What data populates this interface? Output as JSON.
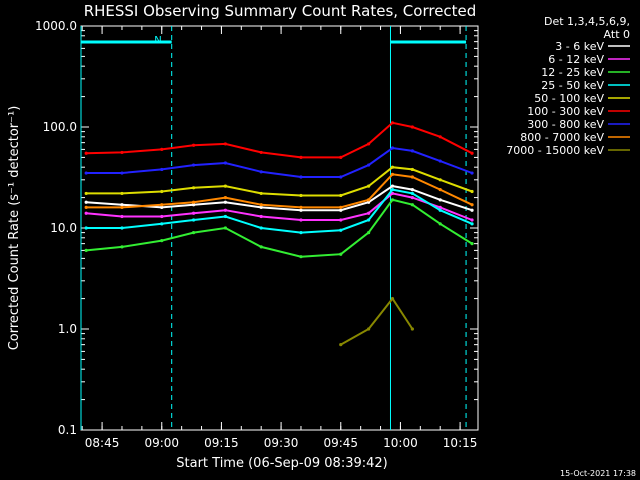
{
  "chart_data": {
    "type": "line",
    "title": "RHESSI Observing Summary Count Rates, Corrected",
    "xlabel": "Start Time (06-Sep-09 08:39:42)",
    "ylabel": "Corrected Count Rate (s⁻¹ detector⁻¹)",
    "yscale": "log",
    "ylim": [
      0.1,
      1000
    ],
    "xlim_minutes": [
      519.7,
      619.5
    ],
    "xtick_labels": [
      "08:45",
      "09:00",
      "09:15",
      "09:30",
      "09:45",
      "10:00",
      "10:15"
    ],
    "xtick_minutes": [
      525,
      540,
      555,
      570,
      585,
      600,
      615
    ],
    "ytick_labels": [
      "0.1",
      "1.0",
      "10.0",
      "100.0",
      "1000.0"
    ],
    "ytick_values": [
      0.1,
      1,
      10,
      100,
      1000
    ],
    "legend_header": [
      "Det 1,3,4,5,6,9,",
      "Att 0"
    ],
    "legend_placement": "right",
    "timestamp": "15-Oct-2021 17:38",
    "annotation_letter": "N",
    "x_minutes": [
      521,
      530,
      540,
      548,
      556,
      565,
      575,
      585,
      592,
      598,
      603,
      610,
      618
    ],
    "series": [
      {
        "name": "3 - 6 keV",
        "color": "#ffffff",
        "values": [
          18,
          17,
          16,
          17,
          18,
          16,
          15,
          15,
          18,
          26,
          24,
          19,
          15
        ]
      },
      {
        "name": "6 - 12 keV",
        "color": "#ff33ff",
        "values": [
          14,
          13,
          13,
          14,
          15,
          13,
          12,
          12,
          14,
          22,
          20,
          16,
          12
        ]
      },
      {
        "name": "12 - 25 keV",
        "color": "#33ee33",
        "values": [
          6,
          6.5,
          7.5,
          9,
          10,
          6.5,
          5.2,
          5.5,
          9,
          19,
          17,
          11,
          7
        ]
      },
      {
        "name": "25 - 50 keV",
        "color": "#00ffff",
        "values": [
          10,
          10,
          11,
          12,
          13,
          10,
          9,
          9.5,
          12,
          24,
          22,
          15,
          11
        ]
      },
      {
        "name": "50 - 100 keV",
        "color": "#dddd00",
        "values": [
          22,
          22,
          23,
          25,
          26,
          22,
          21,
          21,
          26,
          40,
          38,
          30,
          23
        ]
      },
      {
        "name": "100 - 300 keV",
        "color": "#ff0000",
        "values": [
          55,
          56,
          60,
          66,
          68,
          56,
          50,
          50,
          68,
          110,
          100,
          80,
          55
        ]
      },
      {
        "name": "300 - 800 keV",
        "color": "#2222ff",
        "values": [
          35,
          35,
          38,
          42,
          44,
          36,
          32,
          32,
          42,
          62,
          58,
          46,
          35
        ]
      },
      {
        "name": "800 - 7000 keV",
        "color": "#ff8800",
        "values": [
          16,
          16,
          17,
          18,
          20,
          17,
          16,
          16,
          19,
          34,
          32,
          24,
          17
        ]
      },
      {
        "name": "7000 - 15000 keV",
        "color": "#888800",
        "values": [
          null,
          null,
          null,
          null,
          null,
          null,
          null,
          0.7,
          1.0,
          2.0,
          1.0,
          null,
          null
        ]
      }
    ],
    "attenuator_markers_minutes": [
      519.7,
      542.5,
      597.5,
      616.5
    ]
  }
}
